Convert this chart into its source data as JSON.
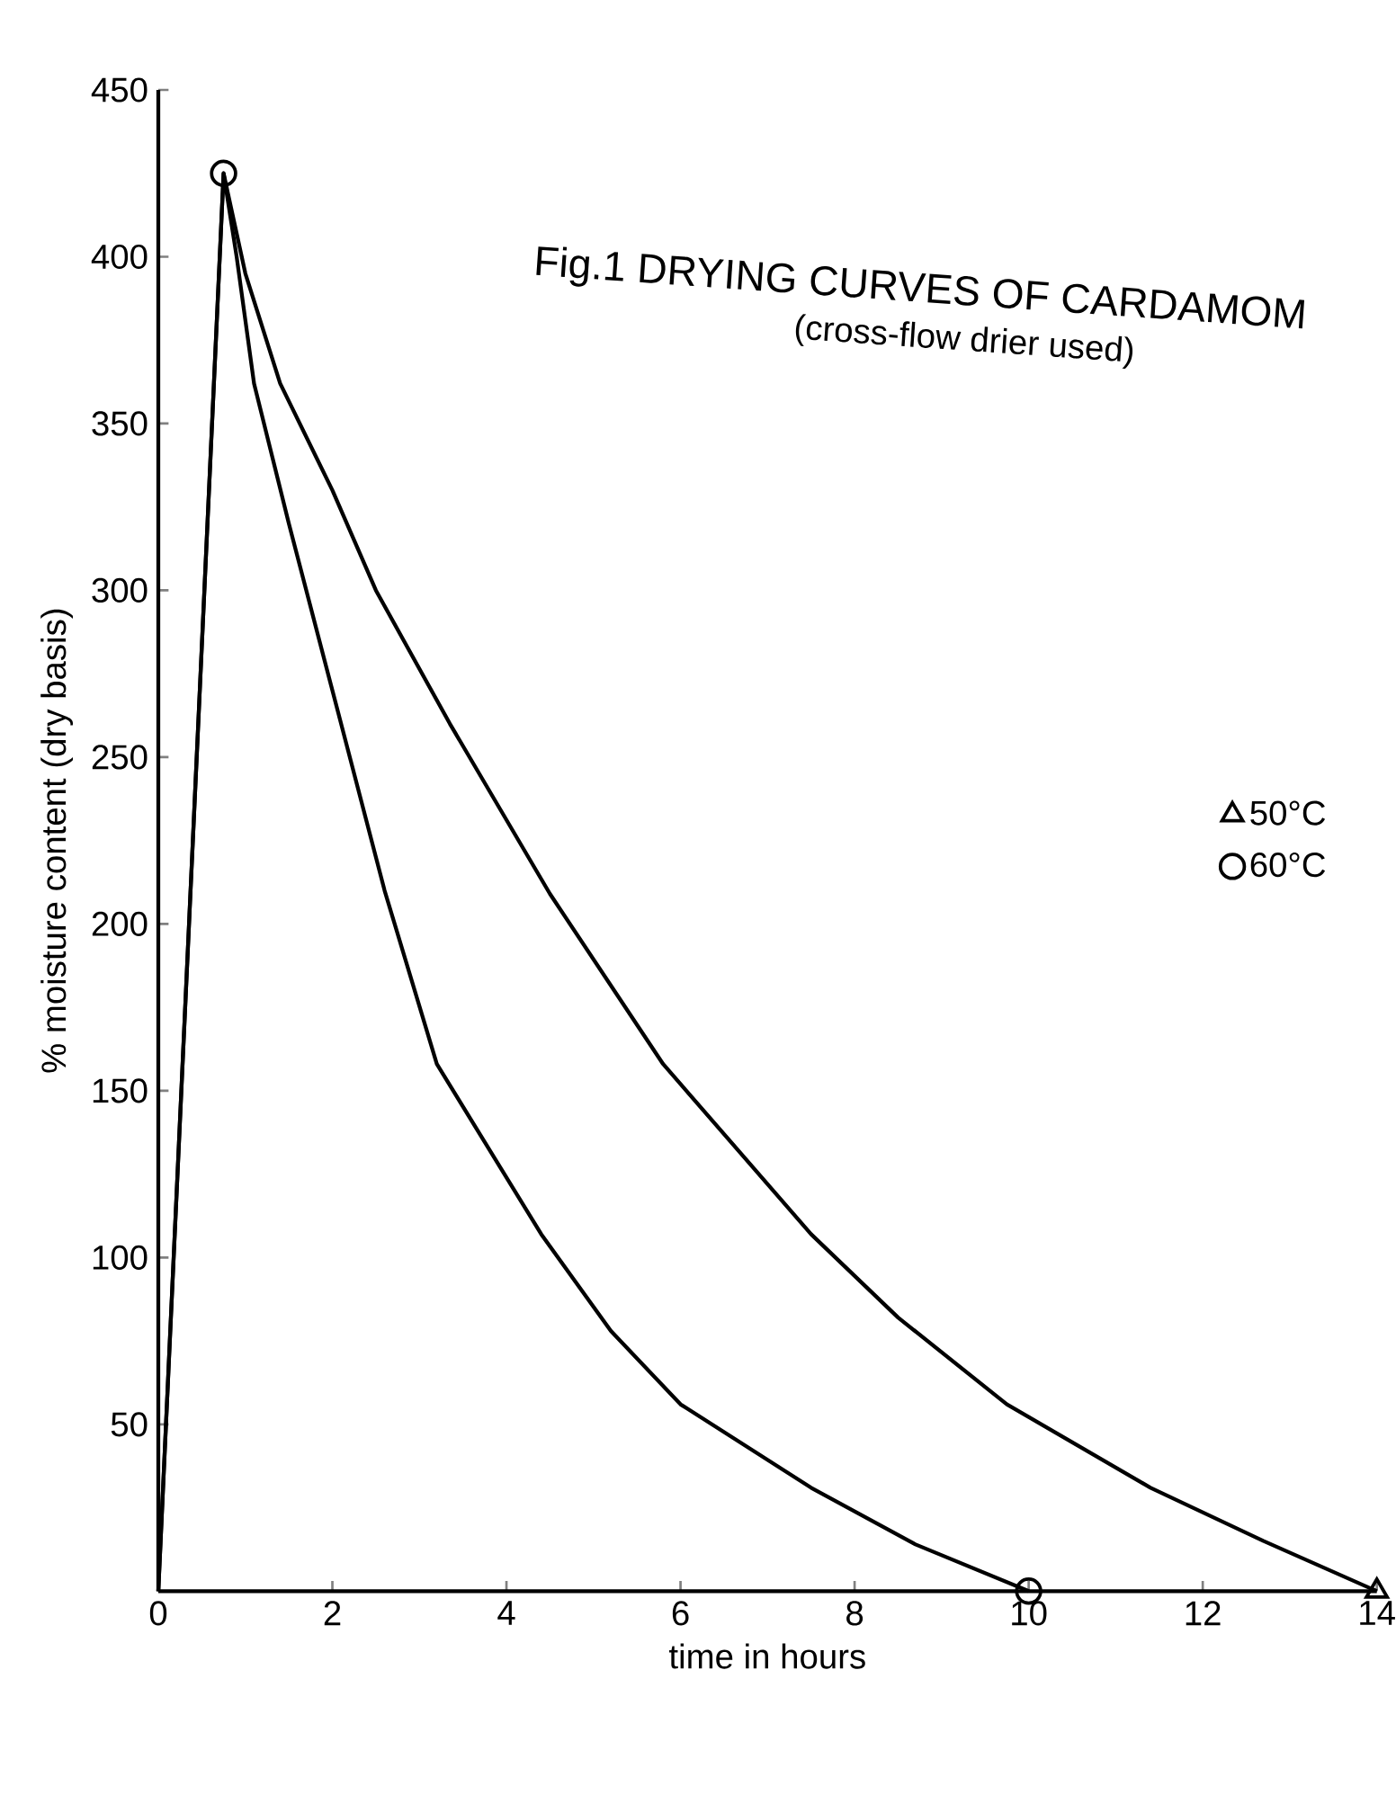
{
  "chart_data": {
    "type": "line",
    "title": "Fig.1 DRYING CURVES OF CARDAMOM",
    "subtitle": "(cross-flow drier used)",
    "xlabel": "time in hours",
    "ylabel": "% moisture content (dry basis)",
    "xlim": [
      0,
      14
    ],
    "ylim": [
      0,
      450
    ],
    "xticks": [
      0,
      2,
      4,
      6,
      8,
      10,
      12,
      14
    ],
    "yticks": [
      50,
      100,
      150,
      200,
      250,
      300,
      350,
      400,
      450
    ],
    "grid": false,
    "legend": "right",
    "line_style": "solid",
    "series": [
      {
        "color": "#000000",
        "x": [
          0,
          0.75,
          1.0,
          1.4,
          2.0,
          2.5,
          3.35,
          4.5,
          5.8,
          7.5,
          8.5,
          9.75,
          11.4,
          12.7,
          14
        ],
        "values": [
          0,
          425,
          395,
          362,
          330,
          300,
          260,
          209,
          158,
          107,
          82,
          56,
          31,
          15,
          0
        ]
      },
      {
        "color": "#000000",
        "x": [
          0,
          0.75,
          0.9,
          1.1,
          1.5,
          2.1,
          2.6,
          3.2,
          4.4,
          5.2,
          6.0,
          7.5,
          8.7,
          10
        ],
        "values": [
          0,
          425,
          400,
          362,
          320,
          260,
          210,
          158,
          107,
          78,
          56,
          31,
          14,
          0
        ]
      },
      {
        "type": "scatter",
        "name": "50°C",
        "color": "#000000",
        "marker": "triangle",
        "x": [
          14
        ],
        "values": [
          0
        ]
      },
      {
        "type": "scatter",
        "name": "60°C",
        "color": "#000000",
        "marker": "circle",
        "x": [
          0.75,
          10
        ],
        "values": [
          425,
          0
        ]
      }
    ]
  }
}
